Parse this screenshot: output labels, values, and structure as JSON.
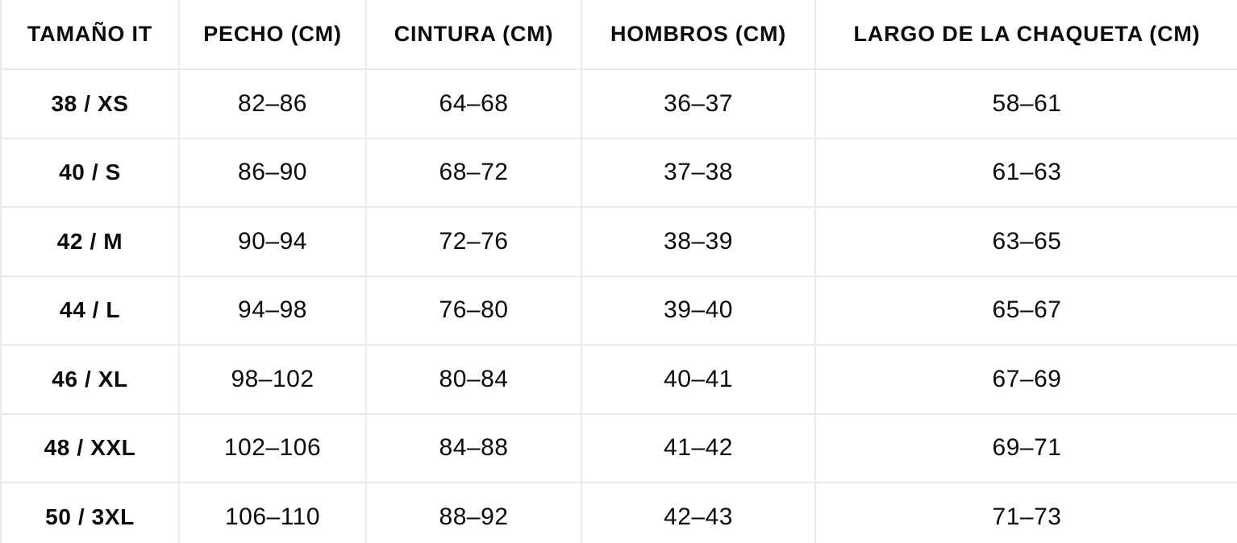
{
  "colors": {
    "background": "#ffffff",
    "border": "#e9e9e9",
    "text": "#0b0b0b"
  },
  "chart_data": {
    "type": "table",
    "title": "",
    "columns": [
      "TAMAÑO IT",
      "PECHO (CM)",
      "CINTURA (CM)",
      "HOMBROS (CM)",
      "LARGO DE LA CHAQUETA (CM)"
    ],
    "rows": [
      [
        "38 / XS",
        "82–86",
        "64–68",
        "36–37",
        "58–61"
      ],
      [
        "40 / S",
        "86–90",
        "68–72",
        "37–38",
        "61–63"
      ],
      [
        "42 / M",
        "90–94",
        "72–76",
        "38–39",
        "63–65"
      ],
      [
        "44 / L",
        "94–98",
        "76–80",
        "39–40",
        "65–67"
      ],
      [
        "46 / XL",
        "98–102",
        "80–84",
        "40–41",
        "67–69"
      ],
      [
        "48 / XXL",
        "102–106",
        "84–88",
        "41–42",
        "69–71"
      ],
      [
        "50 / 3XL",
        "106–110",
        "88–92",
        "42–43",
        "71–73"
      ]
    ],
    "layout": {
      "grid": true,
      "header_row": true,
      "units": "cm"
    }
  }
}
